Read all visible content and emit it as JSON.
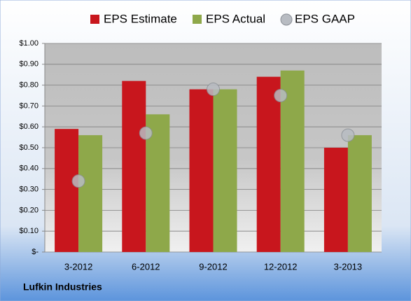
{
  "chart_data": {
    "type": "bar",
    "footer": "Lufkin Industries",
    "categories": [
      "3-2012",
      "6-2012",
      "9-2012",
      "12-2012",
      "3-2013"
    ],
    "series": [
      {
        "name": "EPS Estimate",
        "color": "#c8161d",
        "values": [
          0.59,
          0.82,
          0.78,
          0.84,
          0.5
        ]
      },
      {
        "name": "EPS Actual",
        "color": "#8ea84a",
        "values": [
          0.56,
          0.66,
          0.78,
          0.87,
          0.56
        ]
      },
      {
        "name": "EPS GAAP",
        "color": "#b8bcc2",
        "type": "scatter",
        "values": [
          0.34,
          0.57,
          0.78,
          0.75,
          0.56
        ]
      }
    ],
    "ylim": [
      0,
      1.0
    ],
    "yticks": [
      {
        "value": 0,
        "label": "$-"
      },
      {
        "value": 0.1,
        "label": "$0.10"
      },
      {
        "value": 0.2,
        "label": "$0.20"
      },
      {
        "value": 0.3,
        "label": "$0.30"
      },
      {
        "value": 0.4,
        "label": "$0.40"
      },
      {
        "value": 0.5,
        "label": "$0.50"
      },
      {
        "value": 0.6,
        "label": "$0.60"
      },
      {
        "value": 0.7,
        "label": "$0.70"
      },
      {
        "value": 0.8,
        "label": "$0.80"
      },
      {
        "value": 0.9,
        "label": "$0.90"
      },
      {
        "value": 1.0,
        "label": "$1.00"
      }
    ],
    "grid": true
  }
}
